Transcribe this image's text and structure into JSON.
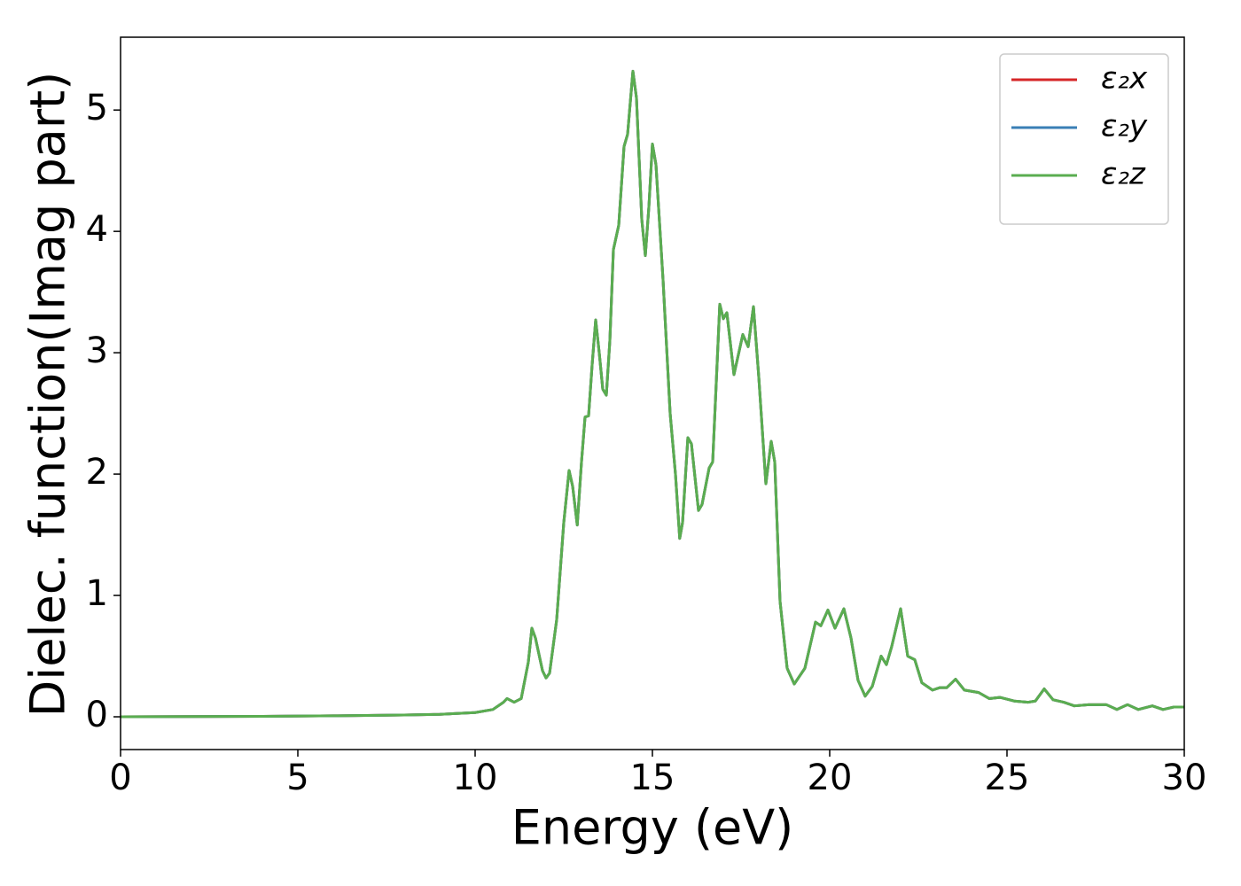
{
  "chart_data": {
    "type": "line",
    "xlabel": "Energy (eV)",
    "ylabel": "Dielec. function(Imag part)",
    "xlim": [
      0,
      30
    ],
    "ylim": [
      -0.27,
      5.6
    ],
    "xticks": [
      0,
      5,
      10,
      15,
      20,
      25,
      30
    ],
    "yticks": [
      0,
      1,
      2,
      3,
      4,
      5
    ],
    "legend": "upper right",
    "x": [
      0,
      2,
      4,
      6,
      8,
      9,
      10,
      10.5,
      10.8,
      10.9,
      11.1,
      11.3,
      11.5,
      11.6,
      11.7,
      11.9,
      12.0,
      12.1,
      12.3,
      12.5,
      12.65,
      12.75,
      12.88,
      13.0,
      13.1,
      13.2,
      13.3,
      13.4,
      13.5,
      13.6,
      13.7,
      13.8,
      13.9,
      14.05,
      14.2,
      14.3,
      14.45,
      14.55,
      14.7,
      14.8,
      14.9,
      15.0,
      15.1,
      15.3,
      15.5,
      15.65,
      15.77,
      15.85,
      16.0,
      16.1,
      16.3,
      16.4,
      16.6,
      16.7,
      16.9,
      17.0,
      17.1,
      17.3,
      17.55,
      17.7,
      17.85,
      18.0,
      18.2,
      18.35,
      18.45,
      18.6,
      18.8,
      19.0,
      19.3,
      19.6,
      19.75,
      19.95,
      20.15,
      20.4,
      20.6,
      20.8,
      21.0,
      21.2,
      21.45,
      21.6,
      21.75,
      22.0,
      22.2,
      22.4,
      22.6,
      22.9,
      23.1,
      23.3,
      23.55,
      23.8,
      24.2,
      24.5,
      24.8,
      25.2,
      25.6,
      25.8,
      26.05,
      26.3,
      26.6,
      26.9,
      27.3,
      27.8,
      28.1,
      28.4,
      28.7,
      29.1,
      29.4,
      29.7,
      30
    ],
    "series": [
      {
        "name": "ε₂x",
        "color": "#d62728",
        "values": [
          0,
          0.002,
          0.004,
          0.008,
          0.015,
          0.02,
          0.035,
          0.06,
          0.12,
          0.15,
          0.12,
          0.15,
          0.45,
          0.73,
          0.65,
          0.38,
          0.32,
          0.36,
          0.8,
          1.6,
          2.03,
          1.9,
          1.58,
          2.1,
          2.47,
          2.48,
          2.9,
          3.27,
          3.0,
          2.7,
          2.65,
          3.1,
          3.85,
          4.05,
          4.7,
          4.8,
          5.32,
          5.1,
          4.1,
          3.8,
          4.2,
          4.72,
          4.55,
          3.6,
          2.5,
          2.0,
          1.47,
          1.6,
          2.3,
          2.25,
          1.7,
          1.75,
          2.05,
          2.1,
          3.4,
          3.28,
          3.33,
          2.82,
          3.15,
          3.05,
          3.38,
          2.8,
          1.92,
          2.27,
          2.1,
          0.95,
          0.4,
          0.27,
          0.4,
          0.78,
          0.75,
          0.88,
          0.73,
          0.89,
          0.65,
          0.3,
          0.17,
          0.25,
          0.5,
          0.43,
          0.58,
          0.89,
          0.5,
          0.47,
          0.28,
          0.22,
          0.24,
          0.24,
          0.31,
          0.22,
          0.2,
          0.15,
          0.16,
          0.13,
          0.12,
          0.13,
          0.23,
          0.14,
          0.12,
          0.09,
          0.1,
          0.1,
          0.06,
          0.1,
          0.06,
          0.09,
          0.06,
          0.08,
          0.08
        ]
      },
      {
        "name": "ε₂y",
        "color": "#3a7fb5",
        "values": [
          0,
          0.002,
          0.004,
          0.008,
          0.015,
          0.02,
          0.035,
          0.06,
          0.12,
          0.15,
          0.12,
          0.15,
          0.45,
          0.73,
          0.65,
          0.38,
          0.32,
          0.36,
          0.8,
          1.6,
          2.03,
          1.9,
          1.58,
          2.1,
          2.47,
          2.48,
          2.9,
          3.27,
          3.0,
          2.7,
          2.65,
          3.1,
          3.85,
          4.05,
          4.7,
          4.8,
          5.32,
          5.1,
          4.1,
          3.8,
          4.2,
          4.72,
          4.55,
          3.6,
          2.5,
          2.0,
          1.47,
          1.6,
          2.3,
          2.25,
          1.7,
          1.75,
          2.05,
          2.1,
          3.4,
          3.28,
          3.33,
          2.82,
          3.15,
          3.05,
          3.38,
          2.8,
          1.92,
          2.27,
          2.1,
          0.95,
          0.4,
          0.27,
          0.4,
          0.78,
          0.75,
          0.88,
          0.73,
          0.89,
          0.65,
          0.3,
          0.17,
          0.25,
          0.5,
          0.43,
          0.58,
          0.89,
          0.5,
          0.47,
          0.28,
          0.22,
          0.24,
          0.24,
          0.31,
          0.22,
          0.2,
          0.15,
          0.16,
          0.13,
          0.12,
          0.13,
          0.23,
          0.14,
          0.12,
          0.09,
          0.1,
          0.1,
          0.06,
          0.1,
          0.06,
          0.09,
          0.06,
          0.08,
          0.08
        ]
      },
      {
        "name": "ε₂z",
        "color": "#5aad50",
        "values": [
          0,
          0.002,
          0.004,
          0.008,
          0.015,
          0.02,
          0.035,
          0.06,
          0.12,
          0.15,
          0.12,
          0.15,
          0.45,
          0.73,
          0.65,
          0.38,
          0.32,
          0.36,
          0.8,
          1.6,
          2.03,
          1.9,
          1.58,
          2.1,
          2.47,
          2.48,
          2.9,
          3.27,
          3.0,
          2.7,
          2.65,
          3.1,
          3.85,
          4.05,
          4.7,
          4.8,
          5.32,
          5.1,
          4.1,
          3.8,
          4.2,
          4.72,
          4.55,
          3.6,
          2.5,
          2.0,
          1.47,
          1.6,
          2.3,
          2.25,
          1.7,
          1.75,
          2.05,
          2.1,
          3.4,
          3.28,
          3.33,
          2.82,
          3.15,
          3.05,
          3.38,
          2.8,
          1.92,
          2.27,
          2.1,
          0.95,
          0.4,
          0.27,
          0.4,
          0.78,
          0.75,
          0.88,
          0.73,
          0.89,
          0.65,
          0.3,
          0.17,
          0.25,
          0.5,
          0.43,
          0.58,
          0.89,
          0.5,
          0.47,
          0.28,
          0.22,
          0.24,
          0.24,
          0.31,
          0.22,
          0.2,
          0.15,
          0.16,
          0.13,
          0.12,
          0.13,
          0.23,
          0.14,
          0.12,
          0.09,
          0.1,
          0.1,
          0.06,
          0.1,
          0.06,
          0.09,
          0.06,
          0.08,
          0.08
        ]
      }
    ]
  }
}
